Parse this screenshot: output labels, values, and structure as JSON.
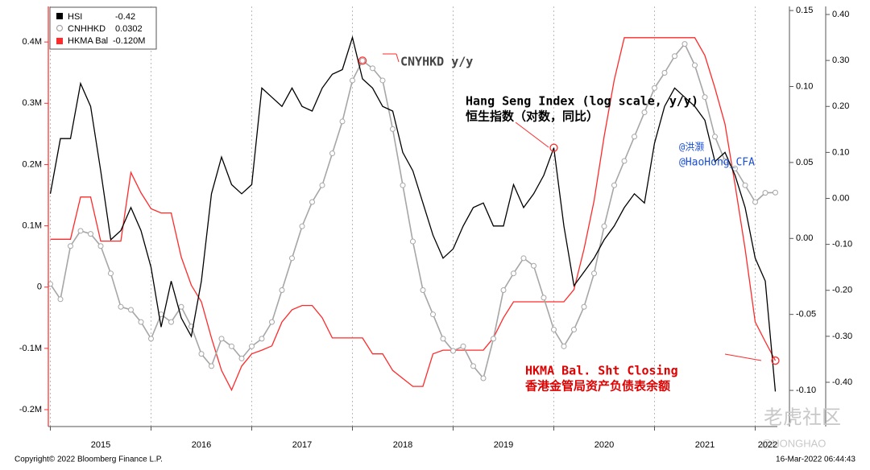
{
  "chart_data": {
    "type": "line",
    "x": [
      2015.0,
      2015.1,
      2015.2,
      2015.3,
      2015.4,
      2015.5,
      2015.6,
      2015.7,
      2015.8,
      2015.9,
      2016.0,
      2016.1,
      2016.2,
      2016.3,
      2016.4,
      2016.5,
      2016.6,
      2016.7,
      2016.8,
      2016.9,
      2017.0,
      2017.1,
      2017.2,
      2017.3,
      2017.4,
      2017.5,
      2017.6,
      2017.7,
      2017.8,
      2017.9,
      2018.0,
      2018.1,
      2018.2,
      2018.3,
      2018.4,
      2018.5,
      2018.6,
      2018.7,
      2018.8,
      2018.9,
      2019.0,
      2019.1,
      2019.2,
      2019.3,
      2019.4,
      2019.5,
      2019.6,
      2019.7,
      2019.8,
      2019.9,
      2020.0,
      2020.1,
      2020.2,
      2020.3,
      2020.4,
      2020.5,
      2020.6,
      2020.7,
      2020.8,
      2020.9,
      2021.0,
      2021.1,
      2021.2,
      2021.3,
      2021.4,
      2021.5,
      2021.6,
      2021.7,
      2021.8,
      2021.9,
      2022.0,
      2022.1,
      2022.2
    ],
    "xlim": [
      2014.98,
      2022.22
    ],
    "xticks": [
      {
        "value": 2015,
        "label": "2015"
      },
      {
        "value": 2016,
        "label": "2016"
      },
      {
        "value": 2017,
        "label": "2017"
      },
      {
        "value": 2018,
        "label": "2018"
      },
      {
        "value": 2019,
        "label": "2019"
      },
      {
        "value": 2020,
        "label": "2020"
      },
      {
        "value": 2021,
        "label": "2021"
      },
      {
        "value": 2022,
        "label": "2022"
      }
    ],
    "ylim": [
      -0.2276,
      0.458
    ],
    "yticks": [
      {
        "value": 0.4,
        "label": "0.4M"
      },
      {
        "value": 0.3,
        "label": "0.3M"
      },
      {
        "value": 0.2,
        "label": "0.2M"
      },
      {
        "value": 0.1,
        "label": "0.1M"
      },
      {
        "value": 0,
        "label": "0"
      },
      {
        "value": -0.1,
        "label": "-0.1M"
      },
      {
        "value": -0.2,
        "label": "-0.2M"
      }
    ],
    "y2lim": [
      -0.1238,
      0.1527
    ],
    "y2ticks": [
      {
        "value": 0.15,
        "label": "0.15"
      },
      {
        "value": 0.1,
        "label": "0.10"
      },
      {
        "value": 0.05,
        "label": "0.05"
      },
      {
        "value": 0,
        "label": "0.00"
      },
      {
        "value": -0.05,
        "label": "-0.05"
      },
      {
        "value": -0.1,
        "label": "-0.10"
      }
    ],
    "y3lim": [
      -0.4963,
      0.4175
    ],
    "y3ticks": [
      {
        "value": 0.4,
        "label": "0.40"
      },
      {
        "value": 0.3,
        "label": "0.30"
      },
      {
        "value": 0.2,
        "label": "0.20"
      },
      {
        "value": 0.1,
        "label": "0.10"
      },
      {
        "value": 0,
        "label": "0.00"
      },
      {
        "value": -0.1,
        "label": "-0.10"
      },
      {
        "value": -0.2,
        "label": "-0.20"
      },
      {
        "value": -0.3,
        "label": "-0.30"
      },
      {
        "value": -0.4,
        "label": "-0.40"
      }
    ],
    "series": [
      {
        "name": "HSI",
        "color": "#000000",
        "axis": "y3",
        "legend_value": "-0.42",
        "values": [
          0.01,
          0.13,
          0.13,
          0.25,
          0.2,
          0.06,
          -0.09,
          -0.07,
          -0.02,
          -0.07,
          -0.15,
          -0.28,
          -0.18,
          -0.26,
          -0.3,
          -0.18,
          0.01,
          0.09,
          0.03,
          0.01,
          0.03,
          0.24,
          0.22,
          0.2,
          0.24,
          0.2,
          0.19,
          0.24,
          0.27,
          0.28,
          0.35,
          0.26,
          0.24,
          0.2,
          0.19,
          0.1,
          0.06,
          -0.01,
          -0.08,
          -0.13,
          -0.11,
          -0.06,
          -0.02,
          -0.01,
          -0.06,
          -0.06,
          0.03,
          -0.02,
          0.01,
          0.05,
          0.11,
          -0.06,
          -0.19,
          -0.16,
          -0.13,
          -0.09,
          -0.06,
          -0.02,
          0.01,
          -0.01,
          0.12,
          0.2,
          0.24,
          0.22,
          0.2,
          0.17,
          0.08,
          0.1,
          0.05,
          -0.02,
          -0.13,
          -0.18,
          -0.42
        ]
      },
      {
        "name": "CNHHKD",
        "color": "#a6a6a6",
        "axis": "y2",
        "legend_value": "0.0302",
        "values": [
          -0.03,
          -0.04,
          -0.005,
          0.005,
          0.003,
          -0.005,
          -0.023,
          -0.045,
          -0.047,
          -0.055,
          -0.066,
          -0.05,
          -0.055,
          -0.045,
          -0.058,
          -0.076,
          -0.084,
          -0.066,
          -0.071,
          -0.079,
          -0.071,
          -0.066,
          -0.055,
          -0.034,
          -0.013,
          0.008,
          0.024,
          0.035,
          0.056,
          0.077,
          0.104,
          0.117,
          0.112,
          0.104,
          0.072,
          0.035,
          -0.002,
          -0.034,
          -0.05,
          -0.066,
          -0.074,
          -0.071,
          -0.084,
          -0.092,
          -0.066,
          -0.034,
          -0.023,
          -0.013,
          -0.018,
          -0.039,
          -0.06,
          -0.071,
          -0.06,
          -0.045,
          -0.023,
          0.008,
          0.035,
          0.051,
          0.067,
          0.083,
          0.099,
          0.109,
          0.12,
          0.128,
          0.114,
          0.093,
          0.067,
          0.051,
          0.046,
          0.035,
          0.024,
          0.03,
          0.0302
        ]
      },
      {
        "name": "HKMA Bal",
        "color": "#ff2a2a",
        "axis": "y",
        "legend_value": "-0.120M",
        "values": [
          0.078,
          0.078,
          0.078,
          0.147,
          0.147,
          0.075,
          0.075,
          0.075,
          0.187,
          0.154,
          0.128,
          0.121,
          0.121,
          0.049,
          0.003,
          -0.024,
          -0.083,
          -0.136,
          -0.168,
          -0.129,
          -0.109,
          -0.103,
          -0.096,
          -0.057,
          -0.037,
          -0.03,
          -0.03,
          -0.05,
          -0.083,
          -0.083,
          -0.083,
          -0.083,
          -0.109,
          -0.109,
          -0.136,
          -0.149,
          -0.162,
          -0.162,
          -0.109,
          -0.103,
          -0.103,
          -0.103,
          -0.103,
          -0.103,
          -0.083,
          -0.05,
          -0.024,
          -0.024,
          -0.024,
          -0.024,
          -0.024,
          -0.024,
          -0.004,
          0.062,
          0.141,
          0.246,
          0.338,
          0.407,
          0.407,
          0.407,
          0.407,
          0.407,
          0.407,
          0.407,
          0.407,
          0.378,
          0.325,
          0.266,
          0.167,
          0.062,
          -0.057,
          -0.089,
          -0.12
        ]
      }
    ],
    "annotations": {
      "cny": "CNYHKD y/y",
      "hsi_en": "Hang Seng Index (log scale, y/y)",
      "hsi_cn": "恒生指数（对数，同比）",
      "author_cn": "@洪灏",
      "author_en": "@HaoHong_CFA",
      "hkma_en": "HKMA Bal. Sht Closing",
      "hkma_cn": "香港金管局资产负债表余额"
    },
    "copyright": "Copyright© 2022 Bloomberg Finance L.P.",
    "timestamp": "16-Mar-2022 06:44:43",
    "watermark": "老虎社区",
    "watermark_handle": "@HONGHAO"
  }
}
